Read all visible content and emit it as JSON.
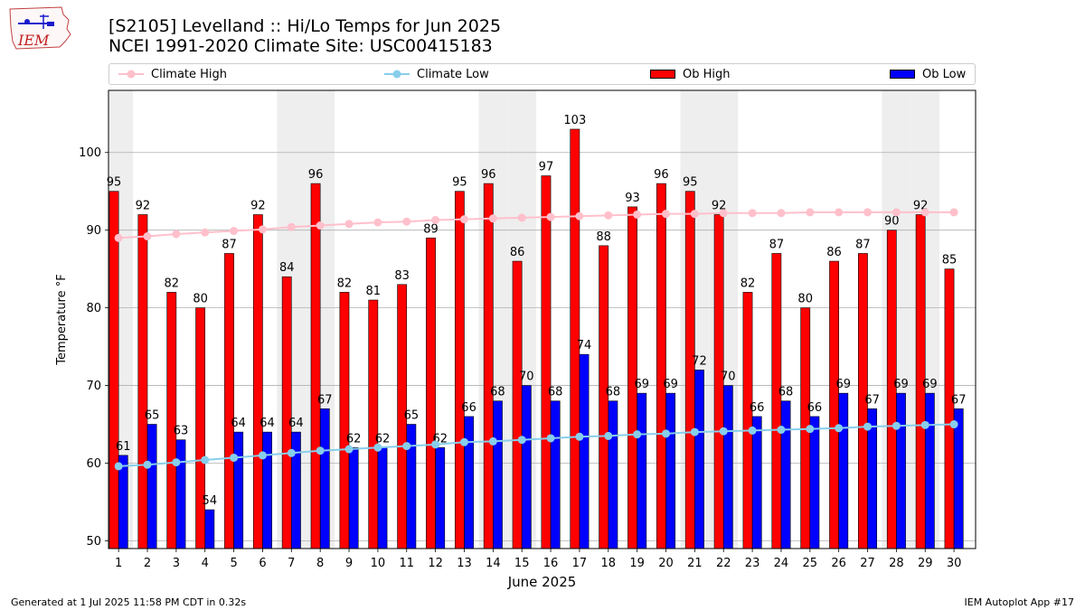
{
  "header": {
    "title_line1": "[S2105] Levelland :: Hi/Lo Temps for Jun 2025",
    "title_line2": "NCEI 1991-2020 Climate Site: USC00415183",
    "logo_text": "IEM"
  },
  "legend": {
    "climate_high": "Climate High",
    "climate_low": "Climate Low",
    "ob_high": "Ob High",
    "ob_low": "Ob Low"
  },
  "footer": {
    "generated": "Generated at 1 Jul 2025 11:58 PM CDT in 0.32s",
    "app": "IEM Autoplot App #17"
  },
  "colors": {
    "ob_high": "#ff0000",
    "ob_low": "#0000ff",
    "climate_high": "#ffc0cb",
    "climate_low": "#87ceeb",
    "weekend_shade": "#eeeeee",
    "grid": "#b0b0b0"
  },
  "chart_data": {
    "type": "bar",
    "xlabel": "June 2025",
    "ylabel": "Temperature °F",
    "ylim": [
      49,
      108
    ],
    "yticks": [
      50,
      60,
      70,
      80,
      90,
      100
    ],
    "grid": "horizontal",
    "legend_position": "top",
    "categories": [
      "1",
      "2",
      "3",
      "4",
      "5",
      "6",
      "7",
      "8",
      "9",
      "10",
      "11",
      "12",
      "13",
      "14",
      "15",
      "16",
      "17",
      "18",
      "19",
      "20",
      "21",
      "22",
      "23",
      "24",
      "25",
      "26",
      "27",
      "28",
      "29",
      "30"
    ],
    "shaded_days": [
      1,
      7,
      8,
      14,
      15,
      21,
      22,
      28,
      29
    ],
    "series": [
      {
        "name": "Ob High",
        "kind": "bar",
        "values": [
          95,
          92,
          82,
          80,
          87,
          92,
          84,
          96,
          82,
          81,
          83,
          89,
          95,
          96,
          86,
          97,
          103,
          88,
          93,
          96,
          95,
          92,
          82,
          87,
          80,
          86,
          87,
          90,
          92,
          85
        ]
      },
      {
        "name": "Ob Low",
        "kind": "bar",
        "values": [
          61,
          65,
          63,
          54,
          64,
          64,
          64,
          67,
          62,
          62,
          65,
          62,
          66,
          68,
          70,
          68,
          74,
          68,
          69,
          69,
          72,
          70,
          66,
          68,
          66,
          69,
          67,
          69,
          69,
          67
        ]
      },
      {
        "name": "Climate High",
        "kind": "line",
        "values": [
          89.0,
          89.2,
          89.5,
          89.7,
          89.9,
          90.1,
          90.4,
          90.6,
          90.8,
          91.0,
          91.1,
          91.3,
          91.4,
          91.5,
          91.6,
          91.7,
          91.8,
          91.9,
          92.0,
          92.1,
          92.1,
          92.2,
          92.2,
          92.2,
          92.3,
          92.3,
          92.3,
          92.3,
          92.3,
          92.3
        ]
      },
      {
        "name": "Climate Low",
        "kind": "line",
        "values": [
          59.6,
          59.8,
          60.1,
          60.4,
          60.7,
          61.0,
          61.3,
          61.6,
          61.8,
          62.0,
          62.2,
          62.4,
          62.7,
          62.8,
          63.0,
          63.2,
          63.4,
          63.5,
          63.7,
          63.8,
          64.0,
          64.1,
          64.2,
          64.3,
          64.4,
          64.5,
          64.7,
          64.8,
          64.9,
          65.0
        ]
      }
    ]
  }
}
